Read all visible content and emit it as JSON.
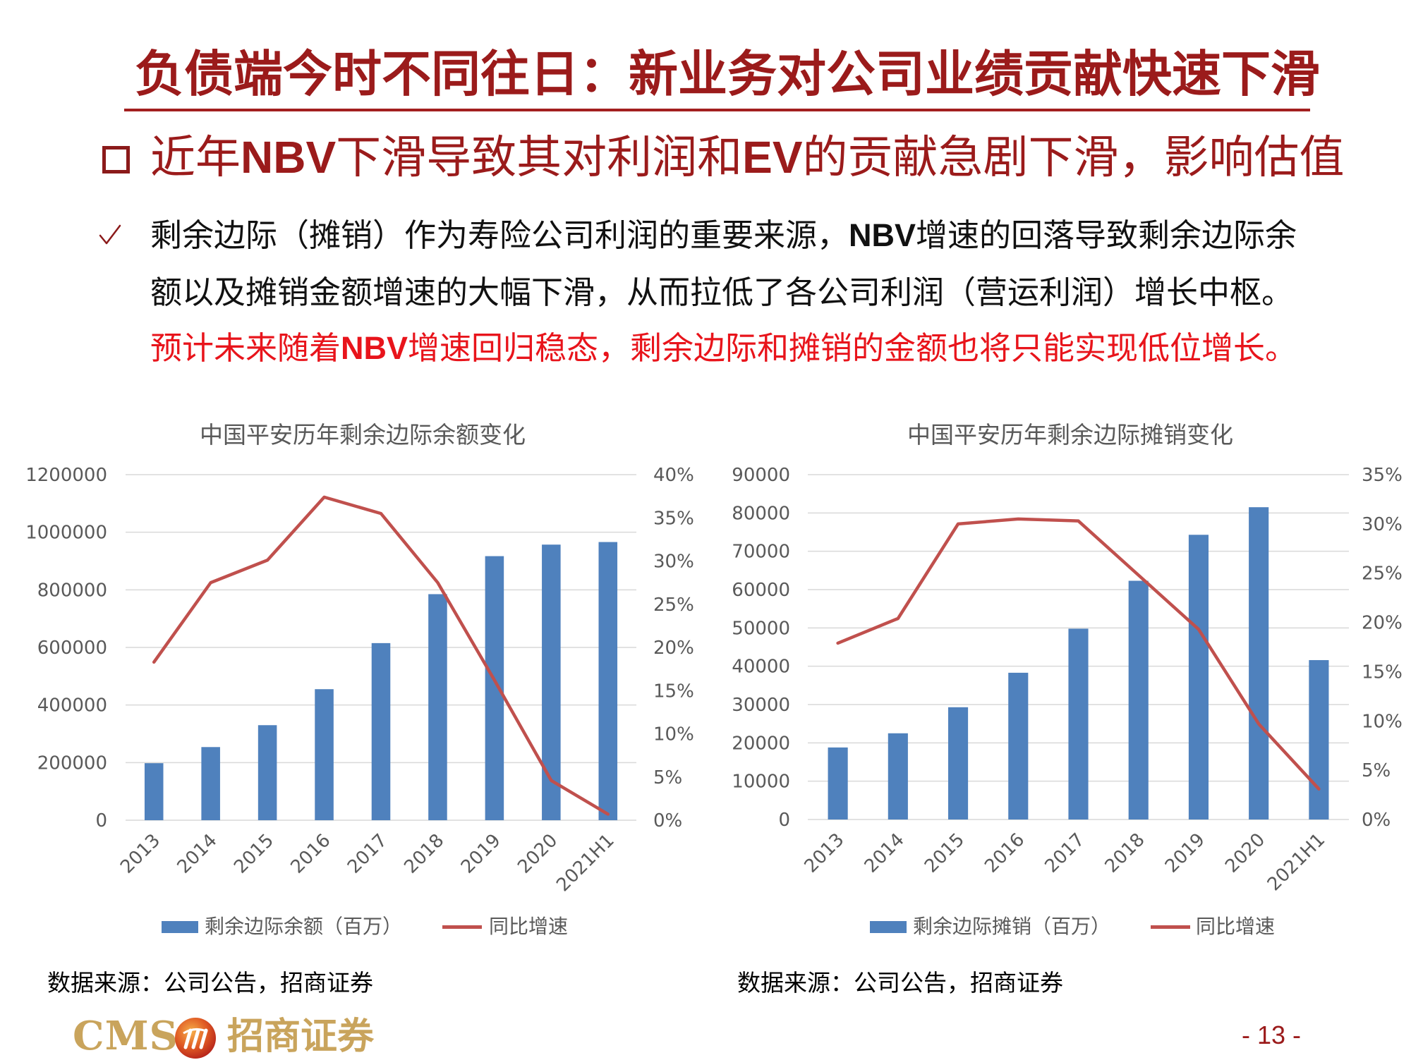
{
  "page": {
    "title": "负债端今时不同往日：新业务对公司业绩贡献快速下滑",
    "page_number": "- 13 -"
  },
  "subtitle": {
    "icon": "hollow-square-icon",
    "p1": "近年",
    "p2": "NBV",
    "p3": "下滑导致其对利润和",
    "p4": "EV",
    "p5": "的贡献急剧下滑，影响估值"
  },
  "bullet": {
    "icon": "check-icon",
    "l1a": "剩余边际（摊销）作为寿险公司利润的重要来源，",
    "l1b": "NBV",
    "l1c": "增速的回落导致剩余边际余",
    "l2": "额以及摊销金额增速的大幅下滑，从而拉低了各公司利润（营运利润）增长中枢。",
    "l3a": "预计未来随着",
    "l3b": "NBV",
    "l3c": "增速回归稳态，剩余边际和摊销的金额也将只能实现低位增长。"
  },
  "logo": {
    "latin": "CMS",
    "emblem": "logo-emblem-icon",
    "chinese": "招商证券"
  },
  "colors": {
    "title": "#9B1B1B",
    "highlight_text": "#E8141B",
    "bar": "#4F81BD",
    "line": "#C0504D",
    "logo": "#C9A45C"
  },
  "chart_data": [
    {
      "type": "bar",
      "title": "中国平安历年剩余边际余额变化",
      "categories": [
        "2013",
        "2014",
        "2015",
        "2016",
        "2017",
        "2018",
        "2019",
        "2020",
        "2021H1"
      ],
      "series": [
        {
          "name": "剩余边际余额（百万）",
          "type": "bar",
          "axis": "left",
          "color": "#4F81BD",
          "values": [
            198000,
            254000,
            330000,
            455000,
            615000,
            785000,
            917000,
            957000,
            966000
          ]
        },
        {
          "name": "同比增速",
          "type": "line",
          "axis": "right",
          "unit": "%",
          "color": "#C0504D",
          "values": [
            18.3,
            27.5,
            30.1,
            37.4,
            35.5,
            27.5,
            16.2,
            4.6,
            0.7
          ]
        }
      ],
      "ylim": [
        0,
        1200000
      ],
      "y2lim": [
        0,
        40
      ],
      "y_left_ticks": [
        "0",
        "200000",
        "400000",
        "600000",
        "800000",
        "1000000",
        "1200000"
      ],
      "y_right_ticks": [
        "0%",
        "5%",
        "10%",
        "15%",
        "20%",
        "25%",
        "30%",
        "35%",
        "40%"
      ],
      "grid": true,
      "legend": "bottom",
      "source": "数据来源：公司公告，招商证券"
    },
    {
      "type": "bar",
      "title": "中国平安历年剩余边际摊销变化",
      "categories": [
        "2013",
        "2014",
        "2015",
        "2016",
        "2017",
        "2018",
        "2019",
        "2020",
        "2021H1"
      ],
      "series": [
        {
          "name": "剩余边际摊销（百万）",
          "type": "bar",
          "axis": "left",
          "color": "#4F81BD",
          "values": [
            18800,
            22500,
            29300,
            38300,
            49800,
            62300,
            74300,
            81500,
            41600
          ]
        },
        {
          "name": "同比增速",
          "type": "line",
          "axis": "right",
          "unit": "%",
          "color": "#C0504D",
          "values": [
            17.9,
            20.4,
            30.0,
            30.5,
            30.3,
            24.8,
            19.3,
            9.7,
            3.1
          ]
        }
      ],
      "ylim": [
        0,
        90000
      ],
      "y2lim": [
        0,
        35
      ],
      "y_left_ticks": [
        "0",
        "10000",
        "20000",
        "30000",
        "40000",
        "50000",
        "60000",
        "70000",
        "80000",
        "90000"
      ],
      "y_right_ticks": [
        "0%",
        "5%",
        "10%",
        "15%",
        "20%",
        "25%",
        "30%",
        "35%"
      ],
      "grid": true,
      "legend": "bottom",
      "source": "数据来源：公司公告，招商证券"
    }
  ]
}
